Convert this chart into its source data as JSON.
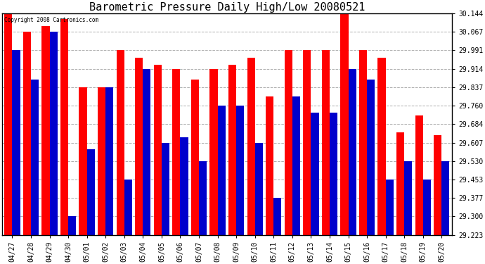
{
  "title": "Barometric Pressure Daily High/Low 20080521",
  "copyright": "Copyright 2008 Cartronics.com",
  "dates": [
    "04/27",
    "04/28",
    "04/29",
    "04/30",
    "05/01",
    "05/02",
    "05/03",
    "05/04",
    "05/05",
    "05/06",
    "05/07",
    "05/08",
    "05/09",
    "05/10",
    "05/11",
    "05/12",
    "05/13",
    "05/14",
    "05/15",
    "05/16",
    "05/17",
    "05/18",
    "05/19",
    "05/20"
  ],
  "highs": [
    30.144,
    30.067,
    30.091,
    30.121,
    29.837,
    29.837,
    29.991,
    29.96,
    29.93,
    29.914,
    29.868,
    29.914,
    29.93,
    29.96,
    29.8,
    29.991,
    29.991,
    29.991,
    30.144,
    29.991,
    29.96,
    29.65,
    29.72,
    29.637
  ],
  "lows": [
    29.991,
    29.868,
    30.067,
    29.3,
    29.58,
    29.837,
    29.453,
    29.914,
    29.607,
    29.63,
    29.53,
    29.76,
    29.76,
    29.607,
    29.377,
    29.8,
    29.73,
    29.73,
    29.914,
    29.87,
    29.453,
    29.53,
    29.453,
    29.53
  ],
  "ymin": 29.223,
  "ymax": 30.144,
  "yticks": [
    29.223,
    29.3,
    29.377,
    29.453,
    29.53,
    29.607,
    29.684,
    29.76,
    29.837,
    29.914,
    29.991,
    30.067,
    30.144
  ],
  "bar_width": 0.42,
  "high_color": "#FF0000",
  "low_color": "#0000CC",
  "bg_color": "#FFFFFF",
  "grid_color": "#888888",
  "title_fontsize": 11,
  "tick_fontsize": 7,
  "fig_width": 6.9,
  "fig_height": 3.75,
  "dpi": 100
}
